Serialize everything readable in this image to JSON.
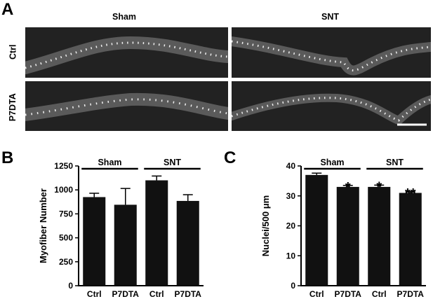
{
  "panel_a": {
    "letter": "A",
    "column_labels": [
      "Sham",
      "SNT"
    ],
    "row_labels": [
      "Ctrl",
      "P7DTA"
    ]
  },
  "chart_data": [
    {
      "panel": "B",
      "type": "bar",
      "categories": [
        "Ctrl",
        "P7DTA",
        "Ctrl",
        "P7DTA"
      ],
      "groups": [
        {
          "label": "Sham",
          "categories": [
            "Ctrl",
            "P7DTA"
          ]
        },
        {
          "label": "SNT",
          "categories": [
            "Ctrl",
            "P7DTA"
          ]
        }
      ],
      "values": [
        925,
        845,
        1100,
        885
      ],
      "errors": [
        40,
        170,
        45,
        65
      ],
      "significance": [
        "",
        "",
        "",
        ""
      ],
      "ylabel": "Myofiber Number",
      "ylim": [
        0,
        1250
      ],
      "yticks": [
        0,
        250,
        500,
        750,
        1000,
        1250
      ],
      "bar_color": "#111111"
    },
    {
      "panel": "C",
      "type": "bar",
      "categories": [
        "Ctrl",
        "P7DTA",
        "Ctrl",
        "P7DTA"
      ],
      "groups": [
        {
          "label": "Sham",
          "categories": [
            "Ctrl",
            "P7DTA"
          ]
        },
        {
          "label": "SNT",
          "categories": [
            "Ctrl",
            "P7DTA"
          ]
        }
      ],
      "values": [
        37,
        33,
        33,
        31
      ],
      "errors": [
        0.6,
        0.5,
        0.6,
        0.4
      ],
      "significance": [
        "",
        "*",
        "*",
        "**"
      ],
      "ylabel": "Nuclei/500 μm",
      "ylim": [
        0,
        40
      ],
      "yticks": [
        0,
        10,
        20,
        30,
        40
      ],
      "bar_color": "#111111"
    }
  ]
}
